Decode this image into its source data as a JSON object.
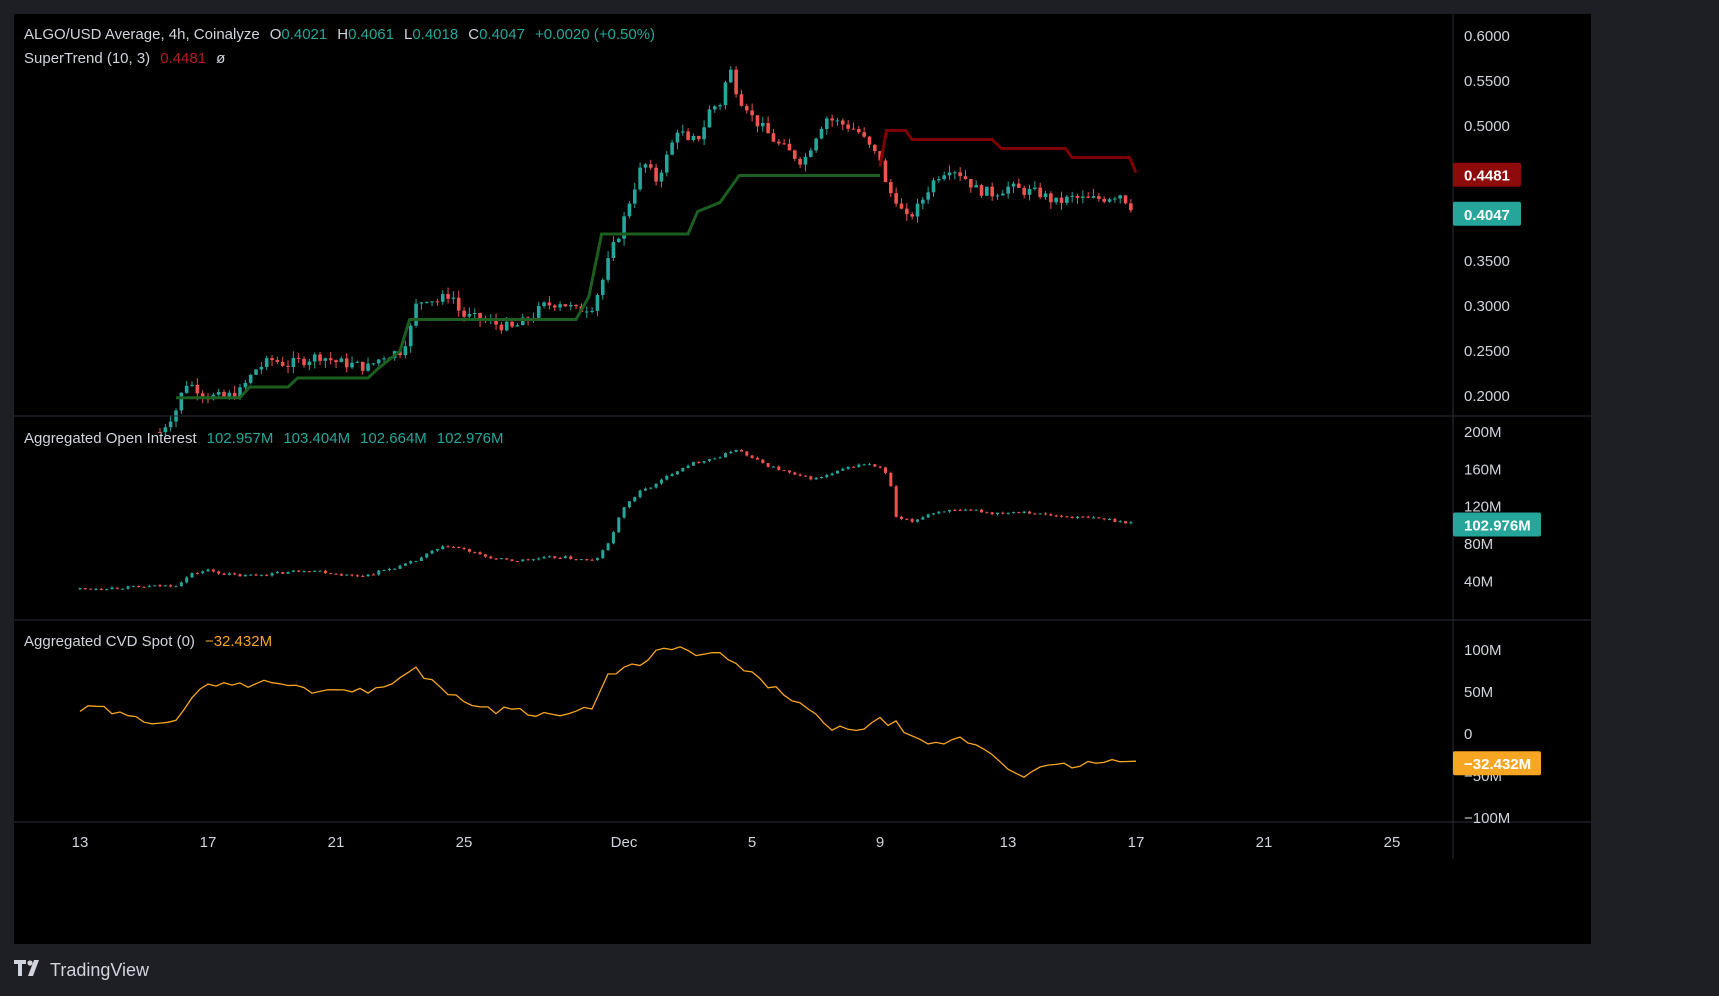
{
  "header": {
    "symbol": "ALGO/USD Average, 4h, Coinalyze",
    "ohlc": {
      "o_label": "O",
      "o": "0.4021",
      "h_label": "H",
      "h": "0.4061",
      "l_label": "L",
      "l": "0.4018",
      "c_label": "C",
      "c": "0.4047",
      "change": "+0.0020 (+0.50%)"
    },
    "supertrend_label": "SuperTrend (10, 3)",
    "supertrend_value": "0.4481",
    "supertrend_flag": "ø"
  },
  "oi_header": {
    "label": "Aggregated Open Interest",
    "v1": "102.957M",
    "v2": "103.404M",
    "v3": "102.664M",
    "v4": "102.976M"
  },
  "cvd_header": {
    "label": "Aggregated CVD Spot (0)",
    "value": "−32.432M"
  },
  "badges": {
    "supertrend": "0.4481",
    "price": "0.4047",
    "oi": "102.976M",
    "cvd": "−32.432M"
  },
  "colors": {
    "up": "#26a69a",
    "down": "#ef5350",
    "supertrend_up": "#1b5e20",
    "supertrend_down": "#7f0000",
    "cvd": "#f6a623",
    "badge_red": "#8e0b0b",
    "badge_teal": "#26a69a",
    "badge_orange": "#f6a623"
  },
  "footer": {
    "brand": "TradingView",
    "logo_icon": "tradingview-logo-icon"
  },
  "chart_data": [
    {
      "type": "candlestick",
      "title": "ALGO/USD Average, 4h, Coinalyze",
      "ylim": [
        0.18,
        0.62
      ],
      "yticks": [
        "0.6000",
        "0.5500",
        "0.5000",
        "0.4500",
        "0.4000",
        "0.3500",
        "0.3000",
        "0.2500",
        "0.2000"
      ],
      "xticks": [
        {
          "label": "13",
          "x": 0
        },
        {
          "label": "17",
          "x": 4
        },
        {
          "label": "21",
          "x": 8
        },
        {
          "label": "25",
          "x": 12
        },
        {
          "label": "Dec",
          "x": 17
        },
        {
          "label": "5",
          "x": 21
        },
        {
          "label": "9",
          "x": 25
        },
        {
          "label": "13",
          "x": 29
        },
        {
          "label": "17",
          "x": 33
        },
        {
          "label": "21",
          "x": 37
        },
        {
          "label": "25",
          "x": 41
        }
      ],
      "close_path": [
        [
          2.5,
          0.16
        ],
        [
          3.0,
          0.185
        ],
        [
          3.3,
          0.215
        ],
        [
          3.6,
          0.21
        ],
        [
          4.0,
          0.2
        ],
        [
          4.5,
          0.198
        ],
        [
          5.0,
          0.205
        ],
        [
          5.5,
          0.23
        ],
        [
          6.0,
          0.24
        ],
        [
          6.5,
          0.235
        ],
        [
          7.0,
          0.24
        ],
        [
          7.5,
          0.245
        ],
        [
          8.0,
          0.238
        ],
        [
          8.5,
          0.235
        ],
        [
          9.0,
          0.232
        ],
        [
          9.5,
          0.245
        ],
        [
          10.0,
          0.25
        ],
        [
          10.3,
          0.27
        ],
        [
          10.5,
          0.3
        ],
        [
          10.8,
          0.31
        ],
        [
          11.2,
          0.305
        ],
        [
          11.6,
          0.315
        ],
        [
          11.9,
          0.29
        ],
        [
          12.5,
          0.285
        ],
        [
          13.0,
          0.28
        ],
        [
          13.5,
          0.275
        ],
        [
          14.0,
          0.285
        ],
        [
          14.5,
          0.3
        ],
        [
          15.0,
          0.305
        ],
        [
          15.5,
          0.295
        ],
        [
          16.0,
          0.3
        ],
        [
          16.3,
          0.325
        ],
        [
          16.6,
          0.36
        ],
        [
          16.9,
          0.385
        ],
        [
          17.2,
          0.42
        ],
        [
          17.6,
          0.46
        ],
        [
          18.0,
          0.44
        ],
        [
          18.4,
          0.47
        ],
        [
          18.7,
          0.5
        ],
        [
          19.0,
          0.48
        ],
        [
          19.4,
          0.49
        ],
        [
          19.7,
          0.52
        ],
        [
          20.0,
          0.525
        ],
        [
          20.3,
          0.565
        ],
        [
          20.6,
          0.53
        ],
        [
          20.8,
          0.525
        ],
        [
          21.0,
          0.51
        ],
        [
          21.4,
          0.495
        ],
        [
          21.8,
          0.48
        ],
        [
          22.2,
          0.47
        ],
        [
          22.6,
          0.46
        ],
        [
          23.0,
          0.49
        ],
        [
          23.3,
          0.51
        ],
        [
          23.6,
          0.505
        ],
        [
          24.0,
          0.5
        ],
        [
          24.3,
          0.495
        ],
        [
          24.6,
          0.48
        ],
        [
          24.8,
          0.47
        ],
        [
          25.0,
          0.465
        ],
        [
          25.2,
          0.43
        ],
        [
          25.5,
          0.42
        ],
        [
          25.8,
          0.395
        ],
        [
          26.2,
          0.41
        ],
        [
          26.5,
          0.43
        ],
        [
          26.8,
          0.445
        ],
        [
          27.2,
          0.455
        ],
        [
          27.6,
          0.445
        ],
        [
          28.0,
          0.43
        ],
        [
          28.5,
          0.425
        ],
        [
          29.0,
          0.432
        ],
        [
          29.5,
          0.428
        ],
        [
          30.0,
          0.425
        ],
        [
          30.5,
          0.415
        ],
        [
          31.0,
          0.42
        ],
        [
          31.5,
          0.418
        ],
        [
          32.0,
          0.42
        ],
        [
          32.5,
          0.425
        ],
        [
          33.0,
          0.4047
        ]
      ],
      "supertrend_up": [
        [
          3.0,
          0.198
        ],
        [
          5.0,
          0.198
        ],
        [
          5.3,
          0.21
        ],
        [
          6.5,
          0.21
        ],
        [
          6.8,
          0.22
        ],
        [
          9.0,
          0.22
        ],
        [
          9.3,
          0.23
        ],
        [
          10.0,
          0.25
        ],
        [
          10.3,
          0.285
        ],
        [
          15.5,
          0.285
        ],
        [
          15.9,
          0.31
        ],
        [
          16.3,
          0.38
        ],
        [
          19.0,
          0.38
        ],
        [
          19.3,
          0.405
        ],
        [
          20.0,
          0.415
        ],
        [
          20.3,
          0.43
        ],
        [
          20.6,
          0.445
        ],
        [
          24.8,
          0.445
        ],
        [
          25.0,
          0.445
        ]
      ],
      "supertrend_down": [
        [
          25.0,
          0.455
        ],
        [
          25.2,
          0.495
        ],
        [
          25.8,
          0.495
        ],
        [
          26.0,
          0.485
        ],
        [
          28.5,
          0.485
        ],
        [
          28.8,
          0.475
        ],
        [
          30.8,
          0.475
        ],
        [
          31.0,
          0.465
        ],
        [
          32.8,
          0.465
        ],
        [
          33.0,
          0.4481
        ]
      ],
      "last_price": 0.4047,
      "supertrend_last": 0.4481
    },
    {
      "type": "candlestick",
      "title": "Aggregated Open Interest",
      "ylim": [
        20,
        200
      ],
      "yticks": [
        "200M",
        "160M",
        "120M",
        "80M",
        "40M"
      ],
      "close_path": [
        [
          0,
          32
        ],
        [
          1,
          33
        ],
        [
          2,
          34
        ],
        [
          3,
          36
        ],
        [
          3.5,
          48
        ],
        [
          4,
          52
        ],
        [
          4.5,
          48
        ],
        [
          5,
          46
        ],
        [
          5.5,
          47
        ],
        [
          6,
          48
        ],
        [
          6.5,
          50
        ],
        [
          7,
          52
        ],
        [
          7.5,
          51
        ],
        [
          8,
          48
        ],
        [
          8.5,
          46
        ],
        [
          9,
          47
        ],
        [
          9.5,
          52
        ],
        [
          10,
          56
        ],
        [
          10.5,
          62
        ],
        [
          11,
          72
        ],
        [
          11.5,
          78
        ],
        [
          12,
          74
        ],
        [
          12.5,
          68
        ],
        [
          13,
          64
        ],
        [
          13.5,
          62
        ],
        [
          14,
          63
        ],
        [
          14.5,
          65
        ],
        [
          15,
          66
        ],
        [
          15.5,
          64
        ],
        [
          16,
          62
        ],
        [
          16.2,
          66
        ],
        [
          16.5,
          80
        ],
        [
          17,
          120
        ],
        [
          17.5,
          136
        ],
        [
          18,
          144
        ],
        [
          18.5,
          156
        ],
        [
          19,
          165
        ],
        [
          19.5,
          170
        ],
        [
          20,
          173
        ],
        [
          20.5,
          182
        ],
        [
          21,
          172
        ],
        [
          21.5,
          164
        ],
        [
          22,
          158
        ],
        [
          22.5,
          152
        ],
        [
          23,
          150
        ],
        [
          23.5,
          155
        ],
        [
          24,
          162
        ],
        [
          24.5,
          166
        ],
        [
          25,
          162
        ],
        [
          25.3,
          150
        ],
        [
          25.5,
          108
        ],
        [
          26,
          104
        ],
        [
          26.5,
          112
        ],
        [
          27,
          116
        ],
        [
          27.5,
          115
        ],
        [
          28,
          116
        ],
        [
          28.5,
          113
        ],
        [
          29,
          114
        ],
        [
          29.5,
          115
        ],
        [
          30,
          112
        ],
        [
          30.5,
          110
        ],
        [
          31,
          109
        ],
        [
          31.5,
          108
        ],
        [
          32,
          107
        ],
        [
          32.5,
          104
        ],
        [
          33,
          102.976
        ]
      ],
      "last_value": 102.976
    },
    {
      "type": "line",
      "title": "Aggregated CVD Spot (0)",
      "ylim": [
        -100,
        120
      ],
      "yticks": [
        "100M",
        "50M",
        "0",
        "−50M",
        "−100M"
      ],
      "series": [
        {
          "name": "Aggregated CVD Spot",
          "values": [
            [
              0,
              28
            ],
            [
              0.5,
              32
            ],
            [
              1,
              26
            ],
            [
              1.5,
              20
            ],
            [
              2,
              16
            ],
            [
              2.5,
              16
            ],
            [
              3,
              18
            ],
            [
              3.5,
              40
            ],
            [
              4,
              60
            ],
            [
              4.5,
              62
            ],
            [
              5,
              58
            ],
            [
              5.5,
              60
            ],
            [
              6,
              62
            ],
            [
              6.5,
              58
            ],
            [
              7,
              54
            ],
            [
              7.5,
              50
            ],
            [
              8,
              56
            ],
            [
              8.5,
              52
            ],
            [
              9,
              50
            ],
            [
              9.5,
              60
            ],
            [
              10,
              66
            ],
            [
              10.5,
              76
            ],
            [
              11,
              64
            ],
            [
              11.5,
              50
            ],
            [
              12,
              36
            ],
            [
              12.5,
              35
            ],
            [
              13,
              28
            ],
            [
              13.5,
              32
            ],
            [
              14,
              26
            ],
            [
              14.5,
              24
            ],
            [
              15,
              22
            ],
            [
              15.5,
              26
            ],
            [
              16,
              30
            ],
            [
              16.5,
              68
            ],
            [
              17,
              82
            ],
            [
              17.5,
              80
            ],
            [
              18,
              96
            ],
            [
              18.5,
              104
            ],
            [
              19,
              98
            ],
            [
              19.5,
              92
            ],
            [
              20,
              96
            ],
            [
              20.5,
              82
            ],
            [
              21,
              70
            ],
            [
              21.5,
              58
            ],
            [
              22,
              48
            ],
            [
              22.5,
              36
            ],
            [
              23,
              20
            ],
            [
              23.5,
              4
            ],
            [
              24,
              8
            ],
            [
              24.5,
              6
            ],
            [
              25,
              16
            ],
            [
              25.5,
              12
            ],
            [
              26,
              -6
            ],
            [
              26.5,
              -14
            ],
            [
              27,
              -10
            ],
            [
              27.5,
              -6
            ],
            [
              28,
              -12
            ],
            [
              28.5,
              -24
            ],
            [
              29,
              -40
            ],
            [
              29.5,
              -48
            ],
            [
              30,
              -42
            ],
            [
              30.5,
              -38
            ],
            [
              31,
              -38
            ],
            [
              31.5,
              -35
            ],
            [
              32,
              -34
            ],
            [
              32.5,
              -33
            ],
            [
              33,
              -32.432
            ]
          ]
        }
      ],
      "last_value": -32.432
    }
  ]
}
